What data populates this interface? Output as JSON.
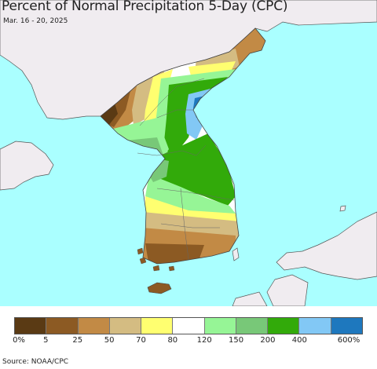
{
  "title": "Percent of Normal Precipitation 5-Day (CPC)",
  "subtitle": "Mar. 16 - 20, 2025",
  "source": "Source: NOAA/CPC",
  "legend": {
    "colors": [
      "#5a3a14",
      "#8c5a23",
      "#c28a45",
      "#d4bc82",
      "#ffff70",
      "#ffffff",
      "#96f596",
      "#78c878",
      "#32aa0a",
      "#82c8f5",
      "#1e78be"
    ],
    "labels": [
      "0%",
      "5",
      "25",
      "50",
      "70",
      "80",
      "120",
      "150",
      "200",
      "400",
      "600%"
    ]
  },
  "colors": {
    "ocean": "#aaffff",
    "land_outside": "#f0ecf0",
    "border": "#555555"
  }
}
